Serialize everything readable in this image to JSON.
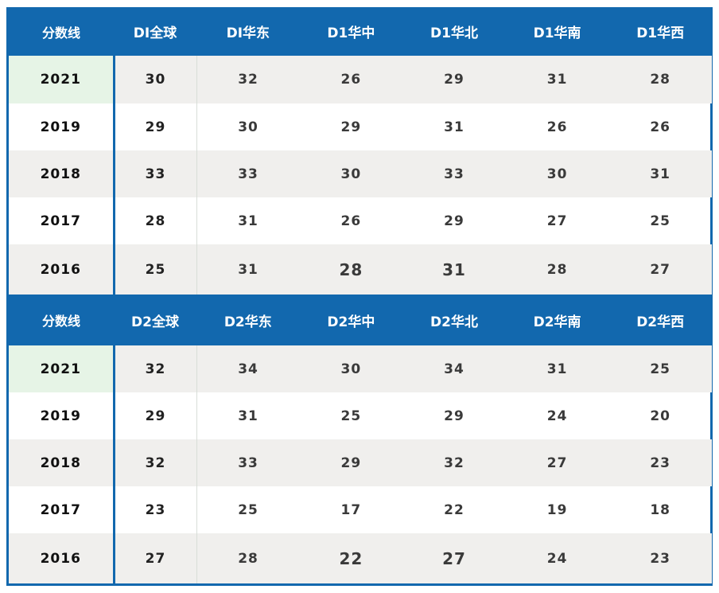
{
  "tables": [
    {
      "headers": [
        "分数线",
        "DI全球",
        "DI华东",
        "D1华中",
        "D1华北",
        "D1华南",
        "D1华西"
      ],
      "rows": [
        [
          "2021",
          "30",
          "32",
          "26",
          "29",
          "31",
          "28"
        ],
        [
          "2019",
          "29",
          "30",
          "29",
          "31",
          "26",
          "26"
        ],
        [
          "2018",
          "33",
          "33",
          "30",
          "33",
          "30",
          "31"
        ],
        [
          "2017",
          "28",
          "31",
          "26",
          "29",
          "27",
          "25"
        ],
        [
          "2016",
          "25",
          "31",
          "28",
          "31",
          "28",
          "27"
        ]
      ]
    },
    {
      "headers": [
        "分数线",
        "D2全球",
        "D2华东",
        "D2华中",
        "D2华北",
        "D2华南",
        "D2华西"
      ],
      "rows": [
        [
          "2021",
          "32",
          "34",
          "30",
          "34",
          "31",
          "25"
        ],
        [
          "2019",
          "29",
          "31",
          "25",
          "29",
          "24",
          "20"
        ],
        [
          "2018",
          "32",
          "33",
          "29",
          "32",
          "27",
          "23"
        ],
        [
          "2017",
          "23",
          "25",
          "17",
          "22",
          "19",
          "18"
        ],
        [
          "2016",
          "27",
          "28",
          "22",
          "27",
          "24",
          "23"
        ]
      ]
    }
  ],
  "colors": {
    "header": "#1268ae",
    "highlight_year": "#e6f4e6",
    "alt_row": "#f0efed"
  }
}
